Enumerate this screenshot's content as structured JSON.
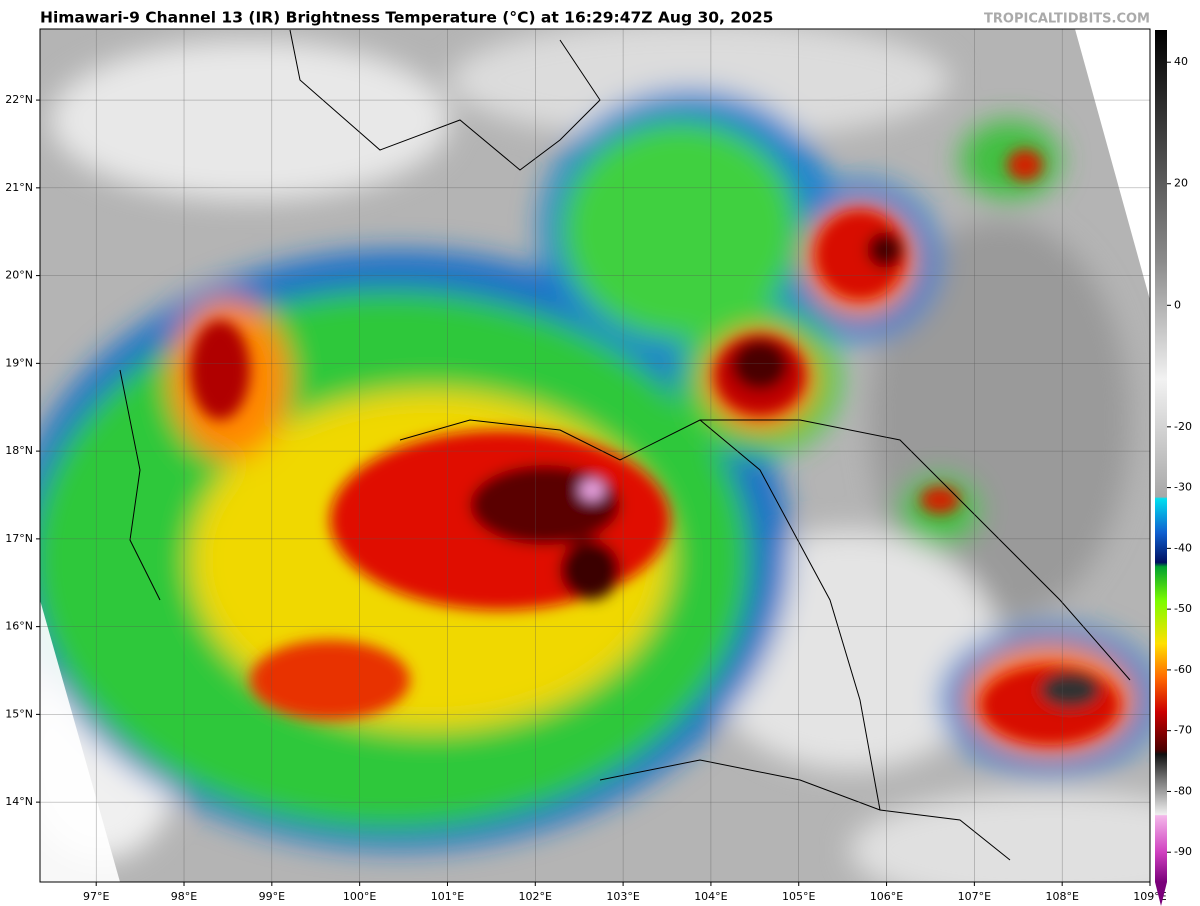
{
  "title": "Himawari-9 Channel 13 (IR) Brightness Temperature (°C) at 16:29:47Z Aug 30, 2025",
  "watermark": "TROPICALTIDBITS.COM",
  "map": {
    "lon_range": [
      96.36,
      109
    ],
    "lat_range": [
      13.09,
      22.81
    ],
    "lon_ticks": [
      {
        "value": 97,
        "label": "97°E"
      },
      {
        "value": 98,
        "label": "98°E"
      },
      {
        "value": 99,
        "label": "99°E"
      },
      {
        "value": 100,
        "label": "100°E"
      },
      {
        "value": 101,
        "label": "101°E"
      },
      {
        "value": 102,
        "label": "102°E"
      },
      {
        "value": 103,
        "label": "103°E"
      },
      {
        "value": 104,
        "label": "104°E"
      },
      {
        "value": 105,
        "label": "105°E"
      },
      {
        "value": 106,
        "label": "106°E"
      },
      {
        "value": 107,
        "label": "107°E"
      },
      {
        "value": 108,
        "label": "108°E"
      },
      {
        "value": 109,
        "label": "109°E"
      }
    ],
    "lat_ticks": [
      {
        "value": 14,
        "label": "14°N"
      },
      {
        "value": 15,
        "label": "15°N"
      },
      {
        "value": 16,
        "label": "16°N"
      },
      {
        "value": 17,
        "label": "17°N"
      },
      {
        "value": 18,
        "label": "18°N"
      },
      {
        "value": 19,
        "label": "19°N"
      },
      {
        "value": 20,
        "label": "20°N"
      },
      {
        "value": 21,
        "label": "21°N"
      },
      {
        "value": 22,
        "label": "22°N"
      }
    ]
  },
  "colorbar": {
    "range": [
      -94.9,
      45.3
    ],
    "ticks": [
      40,
      20,
      0,
      -20,
      -30,
      -40,
      -50,
      -60,
      -70,
      -80,
      -90
    ]
  }
}
